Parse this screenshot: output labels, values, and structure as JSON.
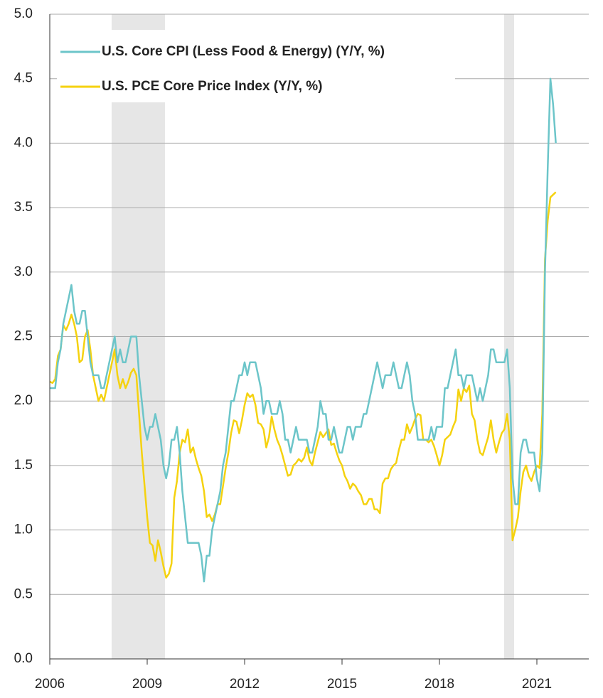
{
  "chart_data": {
    "type": "line",
    "categories": [
      "2006",
      null,
      null,
      null,
      null,
      null,
      null,
      null,
      null,
      null,
      null,
      null,
      null,
      null,
      null,
      null,
      null,
      null,
      null,
      null,
      null,
      null,
      null,
      null,
      null,
      null,
      null,
      null,
      null,
      null,
      null,
      null,
      null,
      null,
      null,
      null,
      "2009",
      null,
      null,
      null,
      null,
      null,
      null,
      null,
      null,
      null,
      null,
      null,
      null,
      null,
      null,
      null,
      null,
      null,
      null,
      null,
      null,
      null,
      null,
      null,
      null,
      null,
      null,
      null,
      null,
      null,
      null,
      null,
      null,
      null,
      null,
      null,
      "2012",
      null,
      null,
      null,
      null,
      null,
      null,
      null,
      null,
      null,
      null,
      null,
      null,
      null,
      null,
      null,
      null,
      null,
      null,
      null,
      null,
      null,
      null,
      null,
      null,
      null,
      null,
      null,
      null,
      null,
      null,
      null,
      null,
      null,
      null,
      null,
      "2015",
      null,
      null,
      null,
      null,
      null,
      null,
      null,
      null,
      null,
      null,
      null,
      null,
      null,
      null,
      null,
      null,
      null,
      null,
      null,
      null,
      null,
      null,
      null,
      null,
      null,
      null,
      null,
      null,
      null,
      null,
      null,
      null,
      null,
      null,
      null,
      "2018",
      null,
      null,
      null,
      null,
      null,
      null,
      null,
      null,
      null,
      null,
      null,
      null,
      null,
      null,
      null,
      null,
      null,
      null,
      null,
      null,
      null,
      null,
      null,
      null,
      null,
      null,
      null,
      null,
      null,
      null,
      null,
      null,
      null,
      null,
      null,
      "2021",
      null,
      null,
      null,
      null,
      null,
      null,
      null
    ],
    "series": [
      {
        "name": "U.S. Core CPI (Less Food & Energy) (Y/Y, %)",
        "color": "#6cc5c9",
        "values": [
          2.1,
          2.1,
          2.1,
          2.3,
          2.4,
          2.6,
          2.7,
          2.8,
          2.9,
          2.7,
          2.6,
          2.6,
          2.7,
          2.7,
          2.5,
          2.3,
          2.2,
          2.2,
          2.2,
          2.1,
          2.1,
          2.2,
          2.3,
          2.4,
          2.5,
          2.3,
          2.4,
          2.3,
          2.3,
          2.4,
          2.5,
          2.5,
          2.5,
          2.2,
          2.0,
          1.8,
          1.7,
          1.8,
          1.8,
          1.9,
          1.8,
          1.7,
          1.5,
          1.4,
          1.5,
          1.7,
          1.7,
          1.8,
          1.6,
          1.3,
          1.1,
          0.9,
          0.9,
          0.9,
          0.9,
          0.9,
          0.8,
          0.6,
          0.8,
          0.8,
          1.0,
          1.1,
          1.2,
          1.3,
          1.5,
          1.6,
          1.8,
          2.0,
          2.0,
          2.1,
          2.2,
          2.2,
          2.3,
          2.2,
          2.3,
          2.3,
          2.3,
          2.2,
          2.1,
          1.9,
          2.0,
          2.0,
          1.9,
          1.9,
          1.9,
          2.0,
          1.9,
          1.7,
          1.7,
          1.6,
          1.7,
          1.8,
          1.7,
          1.7,
          1.7,
          1.7,
          1.6,
          1.6,
          1.7,
          1.8,
          2.0,
          1.9,
          1.9,
          1.7,
          1.7,
          1.8,
          1.7,
          1.6,
          1.6,
          1.7,
          1.8,
          1.8,
          1.7,
          1.8,
          1.8,
          1.8,
          1.9,
          1.9,
          2.0,
          2.1,
          2.2,
          2.3,
          2.2,
          2.1,
          2.2,
          2.2,
          2.2,
          2.3,
          2.2,
          2.1,
          2.1,
          2.2,
          2.3,
          2.2,
          2.0,
          1.9,
          1.7,
          1.7,
          1.7,
          1.7,
          1.7,
          1.8,
          1.7,
          1.8,
          1.8,
          1.8,
          2.1,
          2.1,
          2.2,
          2.3,
          2.4,
          2.2,
          2.2,
          2.1,
          2.2,
          2.2,
          2.2,
          2.1,
          2.0,
          2.1,
          2.0,
          2.1,
          2.2,
          2.4,
          2.4,
          2.3,
          2.3,
          2.3,
          2.3,
          2.4,
          2.1,
          1.4,
          1.2,
          1.2,
          1.6,
          1.7,
          1.7,
          1.6,
          1.6,
          1.6,
          1.4,
          1.3,
          1.6,
          3.0,
          3.8,
          4.5,
          4.3,
          4.0
        ]
      },
      {
        "name": "U.S. PCE Core Price Index (Y/Y, %)",
        "color": "#f5d20f",
        "values": [
          2.15,
          2.14,
          2.17,
          2.35,
          2.4,
          2.59,
          2.55,
          2.6,
          2.67,
          2.6,
          2.5,
          2.3,
          2.32,
          2.5,
          2.55,
          2.4,
          2.2,
          2.1,
          2.0,
          2.05,
          2.0,
          2.1,
          2.2,
          2.3,
          2.4,
          2.2,
          2.1,
          2.17,
          2.1,
          2.15,
          2.22,
          2.25,
          2.2,
          1.9,
          1.6,
          1.35,
          1.1,
          0.9,
          0.88,
          0.76,
          0.92,
          0.83,
          0.72,
          0.63,
          0.66,
          0.74,
          1.25,
          1.38,
          1.6,
          1.7,
          1.68,
          1.78,
          1.6,
          1.64,
          1.55,
          1.48,
          1.42,
          1.3,
          1.1,
          1.12,
          1.07,
          1.12,
          1.2,
          1.2,
          1.34,
          1.48,
          1.6,
          1.75,
          1.85,
          1.84,
          1.75,
          1.85,
          1.97,
          2.06,
          2.03,
          2.05,
          1.97,
          1.83,
          1.82,
          1.78,
          1.64,
          1.72,
          1.88,
          1.78,
          1.7,
          1.65,
          1.58,
          1.5,
          1.42,
          1.43,
          1.5,
          1.52,
          1.55,
          1.53,
          1.56,
          1.64,
          1.54,
          1.5,
          1.6,
          1.68,
          1.76,
          1.72,
          1.75,
          1.78,
          1.66,
          1.67,
          1.6,
          1.54,
          1.5,
          1.42,
          1.38,
          1.32,
          1.36,
          1.34,
          1.3,
          1.27,
          1.2,
          1.2,
          1.24,
          1.24,
          1.16,
          1.16,
          1.13,
          1.36,
          1.4,
          1.4,
          1.47,
          1.5,
          1.52,
          1.62,
          1.7,
          1.7,
          1.82,
          1.75,
          1.8,
          1.86,
          1.9,
          1.89,
          1.7,
          1.7,
          1.68,
          1.7,
          1.65,
          1.58,
          1.5,
          1.58,
          1.7,
          1.72,
          1.74,
          1.8,
          1.85,
          2.09,
          2.0,
          2.1,
          2.07,
          2.12,
          1.9,
          1.85,
          1.7,
          1.6,
          1.58,
          1.65,
          1.72,
          1.85,
          1.7,
          1.6,
          1.68,
          1.75,
          1.78,
          1.9,
          1.7,
          0.92,
          1.0,
          1.1,
          1.3,
          1.45,
          1.5,
          1.42,
          1.38,
          1.45,
          1.5,
          1.48,
          1.9,
          3.1,
          3.4,
          3.58,
          3.6,
          3.62
        ]
      }
    ],
    "ylim": [
      0,
      5
    ],
    "yticks": [
      {
        "value": 0,
        "label": "0.0"
      },
      0.5,
      {
        "value": 1,
        "label": "1.0"
      },
      1.5,
      {
        "value": 2,
        "label": "2.0"
      },
      2.5,
      {
        "value": 3,
        "label": "3.0"
      },
      3.5,
      {
        "value": 4,
        "label": "4.0"
      },
      4.5,
      {
        "value": 5,
        "label": "5.0"
      }
    ],
    "grid": true,
    "legend": "top-left"
  }
}
